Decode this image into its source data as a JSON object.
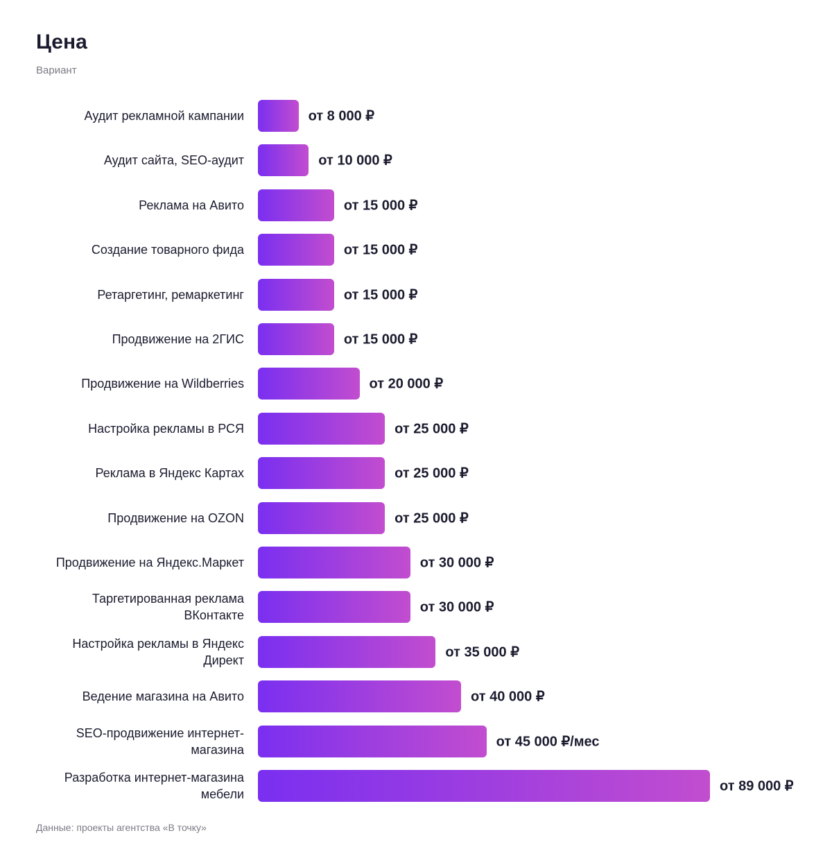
{
  "chart_data": {
    "type": "bar",
    "orientation": "horizontal",
    "title": "Цена",
    "subtitle": "Вариант",
    "categories": [
      "Аудит рекламной кампании",
      "Аудит сайта, SEO-аудит",
      "Реклама на Авито",
      "Создание товарного фида",
      "Ретаргетинг, ремаркетинг",
      "Продвижение на 2ГИС",
      "Продвижение на Wildberries",
      "Настройка рекламы в РСЯ",
      "Реклама в Яндекс Картах",
      "Продвижение на OZON",
      "Продвижение на Яндекс.Маркет",
      "Таргетированная реклама ВКонтакте",
      "Настройка рекламы в Яндекс Директ",
      "Ведение магазина на Авито",
      "SEO-продвижение интернет-магазина",
      "Разработка интернет-магазина мебели"
    ],
    "values": [
      8000,
      10000,
      15000,
      15000,
      15000,
      15000,
      20000,
      25000,
      25000,
      25000,
      30000,
      30000,
      35000,
      40000,
      45000,
      89000
    ],
    "value_labels": [
      "от 8 000 ₽",
      "от 10 000 ₽",
      "от 15 000 ₽",
      "от 15 000 ₽",
      "от 15 000 ₽",
      "от 15 000 ₽",
      "от 20 000 ₽",
      "от 25 000 ₽",
      "от 25 000 ₽",
      "от 25 000 ₽",
      "от 30 000 ₽",
      "от 30 000 ₽",
      "от 35 000 ₽",
      "от 40 000 ₽",
      "от 45 000 ₽/мес",
      "от 89 000 ₽"
    ],
    "source": "Данные: проекты агентства «В точку»"
  }
}
